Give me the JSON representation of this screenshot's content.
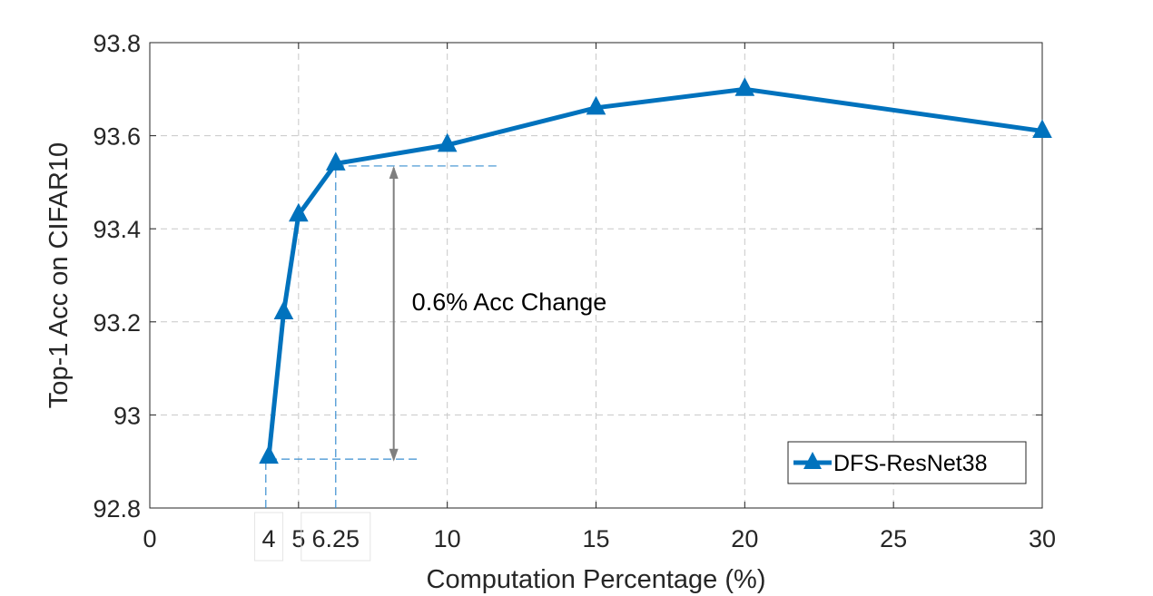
{
  "chart_data": {
    "type": "line",
    "xlabel": "Computation Percentage (%)",
    "ylabel": "Top-1 Acc on CIFAR10",
    "xlim": [
      0,
      30
    ],
    "ylim": [
      92.8,
      93.8
    ],
    "grid": true,
    "legend_position": "bottom-right",
    "x_ticks": [
      "0",
      "5",
      "10",
      "15",
      "20",
      "25",
      "30"
    ],
    "y_ticks": [
      "92.8",
      "93",
      "93.2",
      "93.4",
      "93.6",
      "93.8"
    ],
    "series": [
      {
        "name": "DFS-ResNet38",
        "color": "#0072BD",
        "marker": "triangle",
        "x": [
          4,
          4.5,
          5,
          6.25,
          10,
          15,
          20,
          30
        ],
        "y": [
          92.91,
          93.22,
          93.43,
          93.54,
          93.58,
          93.66,
          93.7,
          93.61
        ]
      }
    ],
    "highlighted_x_ticks": [
      "4",
      "6.25"
    ],
    "annotations": [
      {
        "text": "0.6% Acc Change",
        "type": "double-arrow",
        "from_y": 92.9,
        "to_y": 93.535,
        "x": 8.2
      }
    ],
    "reference_lines": [
      {
        "type": "horizontal",
        "y": 92.905,
        "x_from": 4,
        "x_to": 9
      },
      {
        "type": "horizontal",
        "y": 93.535,
        "x_from": 6.25,
        "x_to": 11.7
      },
      {
        "type": "vertical",
        "x": 3.9,
        "y_from": 92.8,
        "y_to": 92.905
      },
      {
        "type": "vertical",
        "x": 6.25,
        "y_from": 92.8,
        "y_to": 93.535
      }
    ]
  }
}
